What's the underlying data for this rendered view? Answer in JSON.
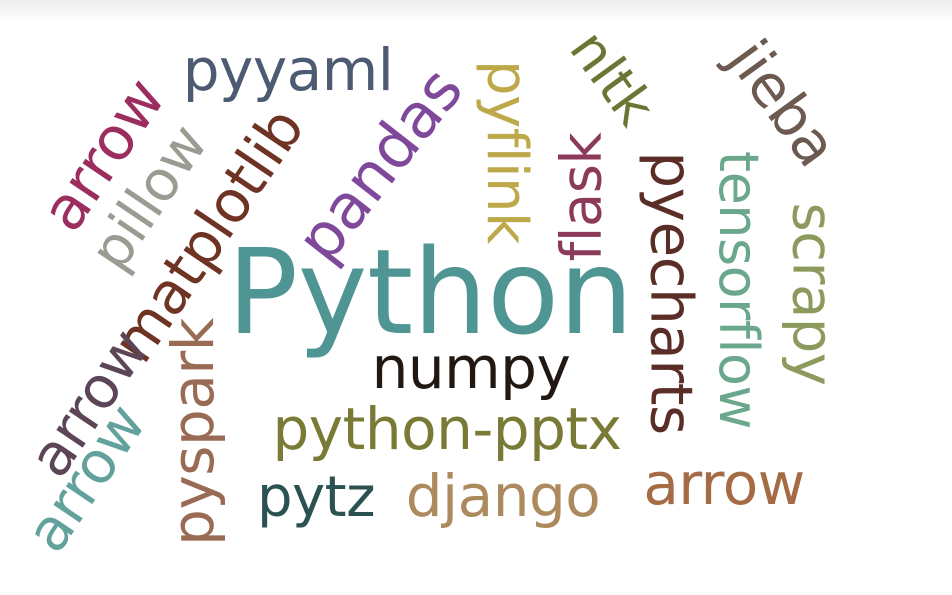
{
  "word_cloud": {
    "words": [
      {
        "id": "python",
        "text": "Python",
        "color": "#4f9593"
      },
      {
        "id": "numpy",
        "text": "numpy",
        "color": "#221813"
      },
      {
        "id": "pyyaml",
        "text": "pyyaml",
        "color": "#4c5a72"
      },
      {
        "id": "arrow-1",
        "text": "arrow",
        "color": "#9c2d5f"
      },
      {
        "id": "pillow",
        "text": "pillow",
        "color": "#9b9b92"
      },
      {
        "id": "matplotlib",
        "text": "matplotlib",
        "color": "#6e3323"
      },
      {
        "id": "pandas",
        "text": "pandas",
        "color": "#7f489b"
      },
      {
        "id": "pyflink",
        "text": "pyflink",
        "color": "#bda84a"
      },
      {
        "id": "nltk",
        "text": "nltk",
        "color": "#6b7635"
      },
      {
        "id": "flask",
        "text": "flask",
        "color": "#8c3a59"
      },
      {
        "id": "jieba",
        "text": "jieba",
        "color": "#6c5a51"
      },
      {
        "id": "pyecharts",
        "text": "pyecharts",
        "color": "#5a2d26"
      },
      {
        "id": "tensorflow",
        "text": "tensorflow",
        "color": "#6aa78c"
      },
      {
        "id": "scrapy",
        "text": "scrapy",
        "color": "#8d9a5d"
      },
      {
        "id": "arrow-2",
        "text": "arrow",
        "color": "#5b4557"
      },
      {
        "id": "arrow-3",
        "text": "arrow",
        "color": "#63a29c"
      },
      {
        "id": "pyspark",
        "text": "pyspark",
        "color": "#996b55"
      },
      {
        "id": "python-pptx",
        "text": "python-pptx",
        "color": "#787a35"
      },
      {
        "id": "pytz",
        "text": "pytz",
        "color": "#2b5152"
      },
      {
        "id": "django",
        "text": "django",
        "color": "#ad8a5e"
      },
      {
        "id": "arrow-4",
        "text": "arrow",
        "color": "#a46b45"
      }
    ]
  }
}
